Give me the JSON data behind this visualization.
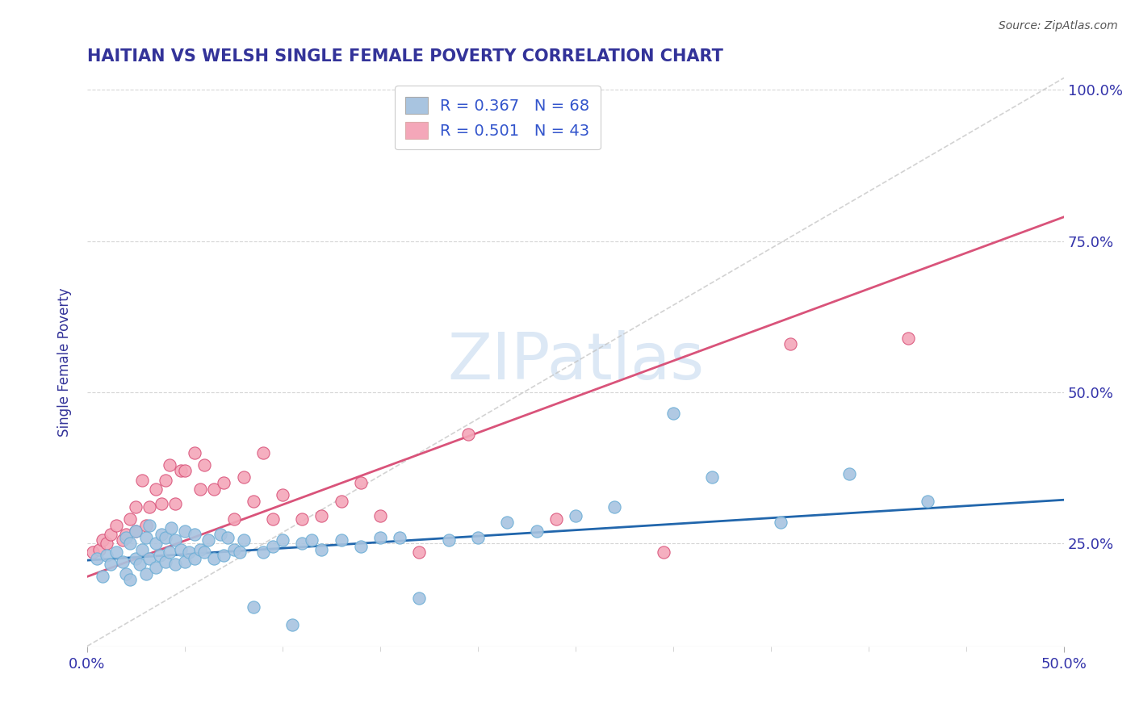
{
  "title": "HAITIAN VS WELSH SINGLE FEMALE POVERTY CORRELATION CHART",
  "source": "Source: ZipAtlas.com",
  "ylabel": "Single Female Poverty",
  "xlim": [
    0.0,
    0.5
  ],
  "ylim": [
    0.08,
    1.02
  ],
  "ytick_values": [
    0.25,
    0.5,
    0.75,
    1.0
  ],
  "ytick_labels": [
    "25.0%",
    "50.0%",
    "75.0%",
    "100.0%"
  ],
  "legend_entries": [
    {
      "label": "R = 0.367   N = 68",
      "color": "#a8c4e0"
    },
    {
      "label": "R = 0.501   N = 43",
      "color": "#f4a7b9"
    }
  ],
  "haitians_scatter_x": [
    0.005,
    0.008,
    0.01,
    0.012,
    0.015,
    0.018,
    0.02,
    0.02,
    0.022,
    0.022,
    0.025,
    0.025,
    0.027,
    0.028,
    0.03,
    0.03,
    0.032,
    0.032,
    0.035,
    0.035,
    0.037,
    0.038,
    0.04,
    0.04,
    0.042,
    0.043,
    0.045,
    0.045,
    0.048,
    0.05,
    0.05,
    0.052,
    0.055,
    0.055,
    0.058,
    0.06,
    0.062,
    0.065,
    0.068,
    0.07,
    0.072,
    0.075,
    0.078,
    0.08,
    0.085,
    0.09,
    0.095,
    0.1,
    0.105,
    0.11,
    0.115,
    0.12,
    0.13,
    0.14,
    0.15,
    0.16,
    0.17,
    0.185,
    0.2,
    0.215,
    0.23,
    0.25,
    0.27,
    0.3,
    0.32,
    0.355,
    0.39,
    0.43
  ],
  "haitians_scatter_y": [
    0.225,
    0.195,
    0.23,
    0.215,
    0.235,
    0.22,
    0.2,
    0.26,
    0.19,
    0.25,
    0.225,
    0.27,
    0.215,
    0.24,
    0.2,
    0.26,
    0.225,
    0.28,
    0.21,
    0.25,
    0.23,
    0.265,
    0.22,
    0.26,
    0.235,
    0.275,
    0.215,
    0.255,
    0.24,
    0.22,
    0.27,
    0.235,
    0.225,
    0.265,
    0.24,
    0.235,
    0.255,
    0.225,
    0.265,
    0.23,
    0.26,
    0.24,
    0.235,
    0.255,
    0.145,
    0.235,
    0.245,
    0.255,
    0.115,
    0.25,
    0.255,
    0.24,
    0.255,
    0.245,
    0.26,
    0.26,
    0.16,
    0.255,
    0.26,
    0.285,
    0.27,
    0.295,
    0.31,
    0.465,
    0.36,
    0.285,
    0.365,
    0.32
  ],
  "welsh_scatter_x": [
    0.003,
    0.006,
    0.008,
    0.01,
    0.012,
    0.015,
    0.018,
    0.02,
    0.022,
    0.025,
    0.025,
    0.028,
    0.03,
    0.032,
    0.035,
    0.038,
    0.04,
    0.042,
    0.045,
    0.048,
    0.05,
    0.055,
    0.058,
    0.06,
    0.065,
    0.07,
    0.075,
    0.08,
    0.085,
    0.09,
    0.095,
    0.1,
    0.11,
    0.12,
    0.13,
    0.14,
    0.15,
    0.17,
    0.195,
    0.24,
    0.295,
    0.36,
    0.42
  ],
  "welsh_scatter_y": [
    0.235,
    0.24,
    0.255,
    0.25,
    0.265,
    0.28,
    0.255,
    0.265,
    0.29,
    0.27,
    0.31,
    0.355,
    0.28,
    0.31,
    0.34,
    0.315,
    0.355,
    0.38,
    0.315,
    0.37,
    0.37,
    0.4,
    0.34,
    0.38,
    0.34,
    0.35,
    0.29,
    0.36,
    0.32,
    0.4,
    0.29,
    0.33,
    0.29,
    0.295,
    0.32,
    0.35,
    0.295,
    0.235,
    0.43,
    0.29,
    0.235,
    0.58,
    0.59
  ],
  "haitian_line_x": [
    0.0,
    0.5
  ],
  "haitian_line_y": [
    0.222,
    0.322
  ],
  "welsh_line_x": [
    0.0,
    0.5
  ],
  "welsh_line_y": [
    0.195,
    0.79
  ],
  "diag_line_x": [
    0.0,
    0.5
  ],
  "diag_line_y": [
    0.08,
    1.02
  ],
  "haitian_color": "#a8c4e0",
  "welsh_color": "#f4a7b9",
  "haitian_line_color": "#2166ac",
  "welsh_line_color": "#d9537a",
  "diag_line_color": "#c0c0c0",
  "background_color": "#ffffff",
  "title_color": "#333399",
  "axis_label_color": "#333399",
  "tick_color": "#3333aa",
  "source_color": "#555555",
  "grid_color": "#cccccc",
  "watermark_text": "ZIPatlas",
  "watermark_color": "#dce8f5",
  "legend_label_color": "#3355cc"
}
